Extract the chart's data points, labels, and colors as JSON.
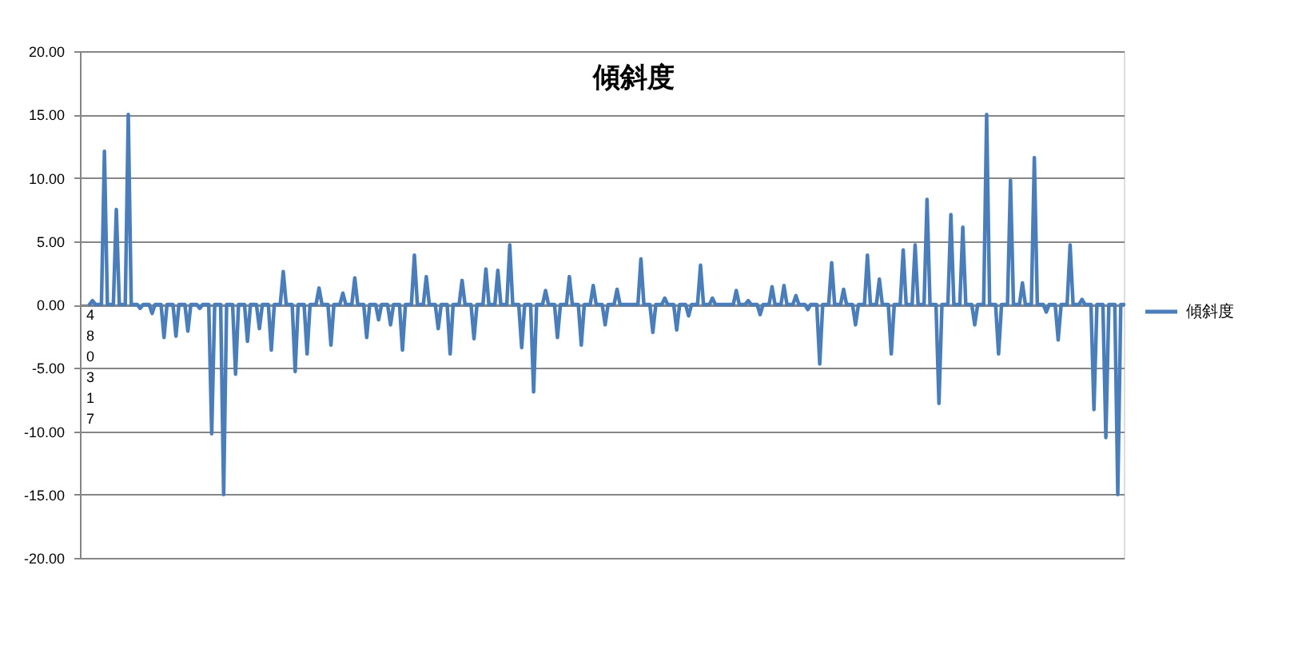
{
  "chart_data": {
    "type": "line",
    "title": "傾斜度",
    "categories": [
      "480317",
      null,
      null,
      null,
      null,
      null,
      null,
      null,
      null,
      null,
      null,
      null,
      null,
      null,
      null,
      null,
      null,
      null,
      null,
      null,
      null,
      null,
      null,
      null,
      null,
      null,
      null,
      null,
      null,
      null,
      null,
      null,
      null,
      null,
      null,
      null,
      null,
      null,
      null,
      null,
      null,
      null,
      null,
      null,
      null,
      null,
      null,
      null,
      null,
      null,
      null,
      null,
      null,
      null,
      null,
      null,
      null,
      null,
      null,
      null,
      null,
      null,
      null,
      null,
      null,
      null,
      null,
      null,
      null,
      null,
      null,
      null,
      null,
      null,
      null,
      null,
      null,
      null,
      null,
      null,
      null,
      null,
      null,
      null,
      null,
      null,
      null,
      null,
      null,
      null,
      null,
      null,
      null,
      null,
      null,
      null,
      null,
      null,
      null,
      null,
      null,
      null,
      null,
      null,
      null,
      null,
      null,
      null,
      null,
      null,
      null,
      null,
      null,
      null,
      null,
      null,
      null,
      null,
      null,
      null,
      null,
      null,
      null,
      null,
      null,
      null,
      null,
      null,
      null,
      null,
      null,
      null,
      null,
      null,
      null,
      null,
      null,
      null,
      null,
      null,
      null,
      null,
      null,
      null,
      null,
      null,
      null,
      null,
      null,
      null,
      null,
      null,
      null,
      null,
      null,
      null,
      null,
      null,
      null,
      null,
      null,
      null,
      null,
      null,
      null,
      null,
      null,
      null,
      null,
      null,
      null,
      null,
      null,
      null,
      null,
      null,
      null,
      null,
      null,
      null,
      null,
      null,
      null,
      null,
      null,
      null,
      null,
      null,
      null,
      null,
      null,
      null,
      null,
      null,
      null,
      null,
      null,
      null,
      null,
      null,
      null,
      null,
      null,
      null,
      null,
      null,
      null,
      null,
      null,
      null,
      null,
      null,
      null,
      null,
      null,
      null,
      null,
      null,
      null,
      null,
      null,
      null,
      null,
      null,
      null,
      null,
      null,
      null,
      null,
      null,
      null,
      null,
      null,
      null,
      null,
      null,
      null,
      null,
      null,
      null,
      null,
      null,
      null,
      null,
      null,
      null,
      null,
      null,
      null,
      null,
      null,
      null,
      null,
      null,
      null,
      null,
      null,
      null,
      null,
      null,
      null,
      null,
      null,
      null,
      null,
      null,
      null,
      null,
      null,
      null,
      null,
      null,
      null,
      null,
      null,
      null,
      null,
      null,
      null,
      null,
      null,
      null,
      null,
      null,
      null,
      null,
      null,
      null,
      null,
      null,
      null,
      null,
      null,
      null,
      null,
      null,
      null,
      null,
      null,
      null,
      null,
      null,
      null,
      null,
      null,
      null,
      null,
      null,
      null,
      null,
      null,
      null,
      null,
      null,
      null,
      null,
      null,
      null,
      null,
      null,
      null,
      null,
      null,
      null,
      null,
      null,
      null,
      null,
      null,
      null,
      null,
      null,
      null,
      null,
      null,
      null,
      null,
      null,
      null,
      null,
      null,
      null,
      null,
      null,
      null,
      null,
      null,
      null
    ],
    "series": [
      {
        "name": "傾斜度",
        "color": "#4a7ebb",
        "values": [
          0,
          0.3,
          0,
          0,
          0,
          12.1,
          0,
          0,
          0,
          7.5,
          0,
          0,
          0,
          15,
          0,
          0,
          0,
          -0.3,
          0,
          0,
          0,
          -0.7,
          0,
          0,
          0,
          -2.6,
          0,
          0,
          0,
          -2.5,
          0,
          0,
          0,
          -2.1,
          0,
          0,
          0,
          -0.3,
          0,
          0,
          0,
          -10.2,
          0,
          0,
          0,
          -15,
          0,
          0,
          0,
          -5.5,
          0,
          0,
          0,
          -2.9,
          0,
          0,
          0,
          -1.9,
          0,
          0,
          0,
          -3.6,
          0,
          0,
          0,
          2.6,
          0,
          0,
          0,
          -5.3,
          0,
          0,
          0,
          -3.9,
          0,
          0,
          0,
          1.3,
          0,
          0,
          0,
          -3.2,
          0,
          0,
          0,
          0.9,
          0,
          0,
          0,
          2.1,
          0,
          0,
          0,
          -2.6,
          0,
          0,
          0,
          -1.2,
          0,
          0,
          0,
          -1.6,
          0,
          0,
          0,
          -3.6,
          0,
          0,
          0,
          3.9,
          0,
          0,
          0,
          2.2,
          0,
          0,
          0,
          -1.9,
          0,
          0,
          0,
          -3.9,
          0,
          0,
          0,
          1.9,
          0,
          0,
          0,
          -2.7,
          0,
          0,
          0,
          2.8,
          0,
          0,
          0,
          2.7,
          0,
          0,
          0,
          4.7,
          0,
          0,
          0,
          -3.4,
          0,
          0,
          0,
          -6.9,
          0,
          0,
          0,
          1.1,
          0,
          0,
          0,
          -2.6,
          0,
          0,
          0,
          2.2,
          0,
          0,
          0,
          -3.2,
          0,
          0,
          0,
          1.5,
          0,
          0,
          0,
          -1.6,
          0,
          0,
          0,
          1.2,
          0,
          0,
          0,
          0,
          0,
          0,
          0,
          3.6,
          0,
          0,
          0,
          -2.2,
          0,
          0,
          0,
          0.5,
          0,
          0,
          0,
          -2,
          0,
          0,
          0,
          -0.9,
          0,
          0,
          0,
          3.1,
          0,
          0,
          0,
          0.5,
          0,
          0,
          0,
          0,
          0,
          0,
          0,
          1.1,
          0,
          0,
          0,
          0.3,
          0,
          0,
          0,
          -0.8,
          0,
          0,
          0,
          1.4,
          0,
          0,
          0,
          1.5,
          0,
          0,
          0,
          0.7,
          0,
          0,
          0,
          -0.4,
          0,
          0,
          0,
          -4.7,
          0,
          0,
          0,
          3.3,
          0,
          0,
          0,
          1.2,
          0,
          0,
          0,
          -1.6,
          0,
          0,
          0,
          3.9,
          0,
          0,
          0,
          2,
          0,
          0,
          0,
          -3.9,
          0,
          0,
          0,
          4.3,
          0,
          0,
          0,
          4.7,
          0,
          0,
          0,
          8.3,
          0,
          0,
          0,
          -7.8,
          0,
          0,
          0,
          7.1,
          0,
          0,
          0,
          6.1,
          0,
          0,
          0,
          -1.6,
          0,
          0,
          0,
          15,
          0,
          0,
          0,
          -3.9,
          0,
          0,
          0,
          9.8,
          0,
          0,
          0,
          1.7,
          0,
          0,
          0,
          11.6,
          0,
          0,
          0,
          -0.6,
          0,
          0,
          0,
          -2.8,
          0,
          0,
          0,
          4.7,
          0,
          0,
          0,
          0.4,
          0,
          0,
          0,
          -8.3,
          0,
          0,
          0,
          -10.5,
          0,
          0,
          0,
          -15,
          0,
          0
        ]
      }
    ],
    "ylim": [
      -20,
      20
    ],
    "yticks": [
      {
        "value": -20,
        "label": "-20.00"
      },
      {
        "value": -15,
        "label": "-15.00"
      },
      {
        "value": -10,
        "label": "-10.00"
      },
      {
        "value": -5,
        "label": "-5.00"
      },
      {
        "value": 0,
        "label": "0.00"
      },
      {
        "value": 5,
        "label": "5.00"
      },
      {
        "value": 10,
        "label": "10.00"
      },
      {
        "value": 15,
        "label": "15.00"
      },
      {
        "value": 20,
        "label": "20.00"
      }
    ],
    "grid": "y",
    "legend": "right",
    "line_style": "solid"
  }
}
